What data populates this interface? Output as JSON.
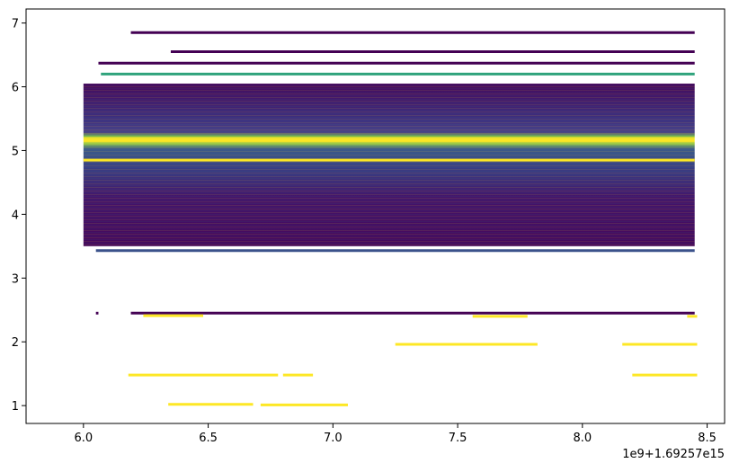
{
  "chart_data": {
    "type": "scatter",
    "title": "",
    "xlabel": "",
    "ylabel": "",
    "x_offset_label": "1e9+1.69257e15",
    "xlim": [
      5.77,
      8.57
    ],
    "ylim": [
      0.72,
      7.22
    ],
    "xticks": [
      {
        "value": 6.0,
        "label": "6.0"
      },
      {
        "value": 6.5,
        "label": "6.5"
      },
      {
        "value": 7.0,
        "label": "7.0"
      },
      {
        "value": 7.5,
        "label": "7.5"
      },
      {
        "value": 8.0,
        "label": "8.0"
      },
      {
        "value": 8.5,
        "label": "8.5"
      }
    ],
    "yticks": [
      {
        "value": 1,
        "label": "1"
      },
      {
        "value": 2,
        "label": "2"
      },
      {
        "value": 3,
        "label": "3"
      },
      {
        "value": 4,
        "label": "4"
      },
      {
        "value": 5,
        "label": "5"
      },
      {
        "value": 6,
        "label": "6"
      },
      {
        "value": 7,
        "label": "7"
      }
    ],
    "grid": false,
    "colormap": "viridis",
    "colors": {
      "dark": "#440154",
      "blue": "#3b528b",
      "teal": "#21918c",
      "green": "#2fa37c",
      "yellow": "#fde725"
    },
    "dense_band": {
      "x": [
        6.0,
        8.45
      ],
      "y": [
        3.5,
        6.05
      ],
      "peak_y": 4.85
    },
    "segments": [
      {
        "x": [
          6.19,
          8.45
        ],
        "y": 6.85,
        "color": "dark"
      },
      {
        "x": [
          6.35,
          8.45
        ],
        "y": 6.55,
        "color": "dark"
      },
      {
        "x": [
          6.06,
          8.45
        ],
        "y": 6.37,
        "color": "dark"
      },
      {
        "x": [
          6.07,
          8.45
        ],
        "y": 6.2,
        "color": "green"
      },
      {
        "x": [
          6.05,
          8.45
        ],
        "y": 3.43,
        "color": "blue"
      },
      {
        "x": [
          6.19,
          8.45
        ],
        "y": 2.45,
        "color": "dark"
      },
      {
        "x": [
          6.05,
          6.06
        ],
        "y": 2.45,
        "color": "dark"
      },
      {
        "x": [
          6.24,
          6.48
        ],
        "y": 2.41,
        "color": "yellow"
      },
      {
        "x": [
          7.56,
          7.78
        ],
        "y": 2.4,
        "color": "yellow"
      },
      {
        "x": [
          8.42,
          8.46
        ],
        "y": 2.4,
        "color": "yellow"
      },
      {
        "x": [
          7.25,
          7.82
        ],
        "y": 1.96,
        "color": "yellow"
      },
      {
        "x": [
          8.16,
          8.46
        ],
        "y": 1.96,
        "color": "yellow"
      },
      {
        "x": [
          6.18,
          6.78
        ],
        "y": 1.48,
        "color": "yellow"
      },
      {
        "x": [
          6.8,
          6.92
        ],
        "y": 1.48,
        "color": "yellow"
      },
      {
        "x": [
          8.2,
          8.46
        ],
        "y": 1.48,
        "color": "yellow"
      },
      {
        "x": [
          6.34,
          6.68
        ],
        "y": 1.02,
        "color": "yellow"
      },
      {
        "x": [
          6.71,
          7.06
        ],
        "y": 1.01,
        "color": "yellow"
      }
    ]
  }
}
